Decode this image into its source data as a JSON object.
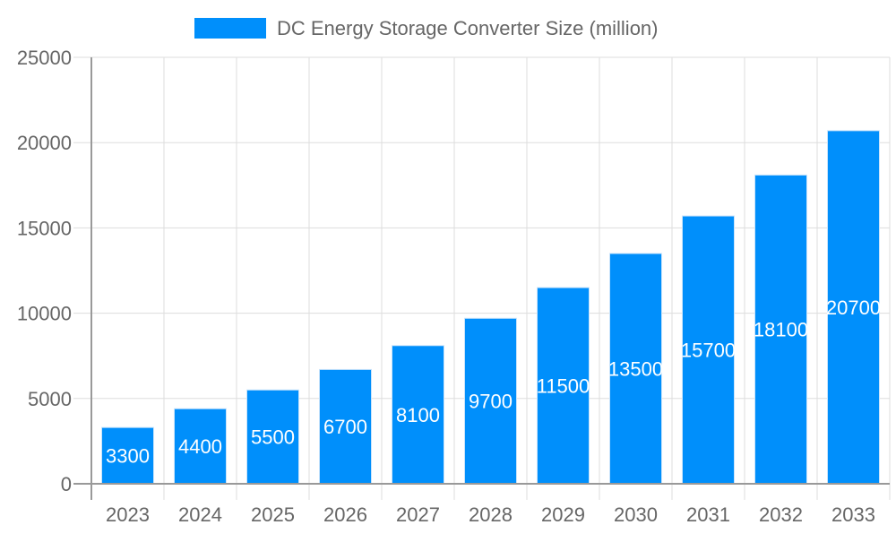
{
  "chart_data": {
    "type": "bar",
    "title": "",
    "xlabel": "",
    "ylabel": "",
    "categories": [
      "2023",
      "2024",
      "2025",
      "2026",
      "2027",
      "2028",
      "2029",
      "2030",
      "2031",
      "2032",
      "2033"
    ],
    "series": [
      {
        "name": "DC Energy Storage Converter Size (million)",
        "values": [
          3300,
          4400,
          5500,
          6700,
          8100,
          9700,
          11500,
          13500,
          15700,
          18100,
          20700
        ]
      }
    ],
    "ylim": [
      0,
      25000
    ],
    "yticks": [
      0,
      5000,
      10000,
      15000,
      20000,
      25000
    ],
    "grid": true,
    "legend": "top",
    "data_labels": true,
    "colors": {
      "bar": "#008ffb",
      "bar_border": "#c8e3fb",
      "grid": "#dddddd",
      "axis": "#999999",
      "text": "#666666",
      "label": "#ffffff"
    }
  }
}
